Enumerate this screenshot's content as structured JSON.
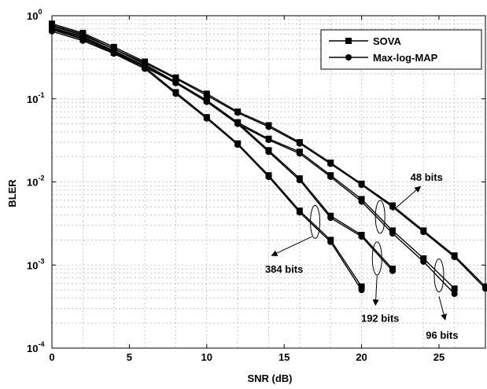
{
  "chart_data": {
    "type": "line",
    "xlabel": "SNR (dB)",
    "ylabel": "BLER",
    "xlim": [
      0,
      28
    ],
    "ylim": [
      0.0001,
      1
    ],
    "yscale": "log",
    "grid": true,
    "legend_position": "top-right",
    "legend": [
      {
        "label": "SOVA",
        "marker": "square"
      },
      {
        "label": "Max-log-MAP",
        "marker": "circle"
      }
    ],
    "xticks": [
      {
        "value": 0,
        "label": "0"
      },
      {
        "value": 5,
        "label": "5"
      },
      {
        "value": 10,
        "label": "10"
      },
      {
        "value": 15,
        "label": "15"
      },
      {
        "value": 20,
        "label": "20"
      },
      {
        "value": 25,
        "label": "25"
      }
    ],
    "yticks": [
      {
        "value": 1,
        "base": "10",
        "exp": "0"
      },
      {
        "value": 0.1,
        "base": "10",
        "exp": "-1"
      },
      {
        "value": 0.01,
        "base": "10",
        "exp": "-2"
      },
      {
        "value": 0.001,
        "base": "10",
        "exp": "-3"
      },
      {
        "value": 0.0001,
        "base": "10",
        "exp": "-4"
      }
    ],
    "series": [
      {
        "block": "48 bits",
        "marker": "square",
        "x": [
          0,
          2,
          4,
          6,
          8,
          10,
          12,
          14,
          16,
          18,
          20,
          22,
          24,
          26,
          28
        ],
        "y": [
          0.8,
          0.62,
          0.42,
          0.28,
          0.18,
          0.115,
          0.07,
          0.048,
          0.03,
          0.017,
          0.0095,
          0.0052,
          0.0026,
          0.0013,
          0.00055
        ]
      },
      {
        "block": "48 bits",
        "marker": "circle",
        "x": [
          0,
          2,
          4,
          6,
          8,
          10,
          12,
          14,
          16,
          18,
          20,
          22,
          24,
          26,
          28
        ],
        "y": [
          0.77,
          0.6,
          0.4,
          0.27,
          0.175,
          0.11,
          0.068,
          0.046,
          0.029,
          0.0165,
          0.0092,
          0.005,
          0.0025,
          0.00125,
          0.00052
        ]
      },
      {
        "block": "96 bits",
        "marker": "square",
        "x": [
          0,
          2,
          4,
          6,
          8,
          10,
          12,
          14,
          16,
          18,
          20,
          22,
          24,
          26
        ],
        "y": [
          0.75,
          0.58,
          0.4,
          0.26,
          0.16,
          0.095,
          0.052,
          0.033,
          0.023,
          0.012,
          0.0062,
          0.0026,
          0.0012,
          0.00052
        ]
      },
      {
        "block": "96 bits",
        "marker": "circle",
        "x": [
          0,
          2,
          4,
          6,
          8,
          10,
          12,
          14,
          16,
          18,
          20,
          22,
          24,
          26
        ],
        "y": [
          0.72,
          0.56,
          0.38,
          0.25,
          0.155,
          0.092,
          0.05,
          0.032,
          0.022,
          0.0115,
          0.0058,
          0.0024,
          0.0011,
          0.00045
        ]
      },
      {
        "block": "192 bits",
        "marker": "square",
        "x": [
          0,
          2,
          4,
          6,
          8,
          10,
          12,
          14,
          16,
          18,
          20,
          22
        ],
        "y": [
          0.7,
          0.55,
          0.37,
          0.25,
          0.16,
          0.096,
          0.052,
          0.024,
          0.011,
          0.0039,
          0.0023,
          0.0009
        ]
      },
      {
        "block": "192 bits",
        "marker": "circle",
        "x": [
          0,
          2,
          4,
          6,
          8,
          10,
          12,
          14,
          16,
          18,
          20,
          22
        ],
        "y": [
          0.68,
          0.53,
          0.36,
          0.24,
          0.155,
          0.092,
          0.05,
          0.023,
          0.0105,
          0.0037,
          0.0022,
          0.00085
        ]
      },
      {
        "block": "384 bits",
        "marker": "square",
        "x": [
          0,
          2,
          4,
          6,
          8,
          10,
          12,
          14,
          16,
          18,
          20
        ],
        "y": [
          0.68,
          0.52,
          0.36,
          0.24,
          0.12,
          0.06,
          0.029,
          0.012,
          0.0045,
          0.002,
          0.00055
        ]
      },
      {
        "block": "384 bits",
        "marker": "circle",
        "x": [
          0,
          2,
          4,
          6,
          8,
          10,
          12,
          14,
          16,
          18,
          20
        ],
        "y": [
          0.65,
          0.5,
          0.35,
          0.23,
          0.115,
          0.058,
          0.028,
          0.0115,
          0.0043,
          0.0019,
          0.0005
        ]
      }
    ],
    "annotations": [
      {
        "text": "48 bits",
        "ellipse": [
          21.2,
          0.0038
        ],
        "label_at": [
          24.2,
          0.0115
        ],
        "arrow_from": [
          22.0,
          0.0045
        ],
        "arrow_to": [
          23.8,
          0.0088
        ]
      },
      {
        "text": "96 bits",
        "ellipse": [
          25.0,
          0.00075
        ],
        "label_at": [
          25.2,
          0.000145
        ],
        "arrow_from": [
          25.0,
          0.00042
        ],
        "arrow_to": [
          25.4,
          0.00022
        ]
      },
      {
        "text": "192 bits",
        "ellipse": [
          21.0,
          0.0012
        ],
        "label_at": [
          21.2,
          0.00023
        ],
        "arrow_from": [
          21.0,
          0.00075
        ],
        "arrow_to": [
          20.9,
          0.00033
        ]
      },
      {
        "text": "384 bits",
        "ellipse": [
          17.0,
          0.0033
        ],
        "label_at": [
          15.0,
          0.0009
        ],
        "arrow_from": [
          16.8,
          0.0022
        ],
        "arrow_to": [
          14.2,
          0.0013
        ]
      }
    ]
  }
}
